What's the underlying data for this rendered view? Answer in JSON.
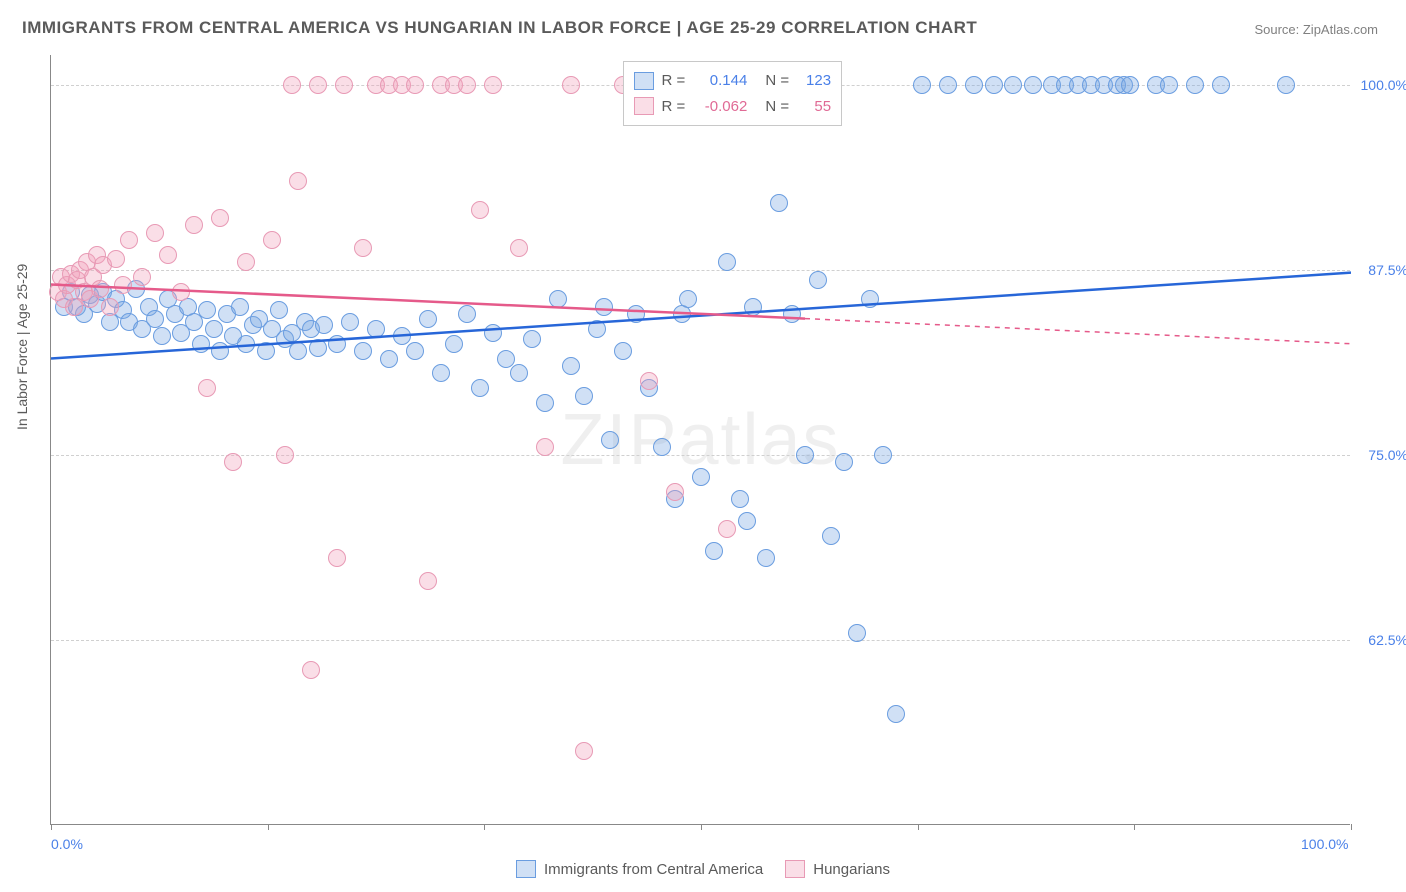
{
  "title": "IMMIGRANTS FROM CENTRAL AMERICA VS HUNGARIAN IN LABOR FORCE | AGE 25-29 CORRELATION CHART",
  "source": "Source: ZipAtlas.com",
  "watermark": "ZIPatlas",
  "ylabel": "In Labor Force | Age 25-29",
  "chart": {
    "type": "scatter",
    "background_color": "#ffffff",
    "grid_color": "#d0d0d0",
    "xlim": [
      0,
      100
    ],
    "ylim": [
      50,
      102
    ],
    "xtick_positions": [
      0,
      16.7,
      33.3,
      50,
      66.7,
      83.3,
      100
    ],
    "xtick_labels": {
      "0": "0.0%",
      "100": "100.0%"
    },
    "yticks": [
      62.5,
      75.0,
      87.5,
      100.0
    ],
    "ytick_labels": [
      "62.5%",
      "75.0%",
      "87.5%",
      "100.0%"
    ],
    "series": [
      {
        "name": "Immigrants from Central America",
        "color_fill": "rgba(120,165,225,0.35)",
        "color_stroke": "#6a9de0",
        "line_color": "#2766d8",
        "marker_radius": 9,
        "R": "0.144",
        "N": "123",
        "trend": {
          "x0": 0,
          "y0": 81.5,
          "x1": 100,
          "y1": 87.3,
          "dash_from_x": 100
        },
        "points": [
          [
            1,
            85
          ],
          [
            1.5,
            86
          ],
          [
            2,
            85
          ],
          [
            2.5,
            84.5
          ],
          [
            3,
            85.8
          ],
          [
            3.5,
            85.2
          ],
          [
            4,
            86
          ],
          [
            4.5,
            84
          ],
          [
            5,
            85.5
          ],
          [
            5.5,
            84.8
          ],
          [
            6,
            84
          ],
          [
            6.5,
            86.2
          ],
          [
            7,
            83.5
          ],
          [
            7.5,
            85
          ],
          [
            8,
            84.2
          ],
          [
            8.5,
            83
          ],
          [
            9,
            85.5
          ],
          [
            9.5,
            84.5
          ],
          [
            10,
            83.2
          ],
          [
            10.5,
            85
          ],
          [
            11,
            84
          ],
          [
            11.5,
            82.5
          ],
          [
            12,
            84.8
          ],
          [
            12.5,
            83.5
          ],
          [
            13,
            82
          ],
          [
            13.5,
            84.5
          ],
          [
            14,
            83
          ],
          [
            14.5,
            85
          ],
          [
            15,
            82.5
          ],
          [
            15.5,
            83.8
          ],
          [
            16,
            84.2
          ],
          [
            16.5,
            82
          ],
          [
            17,
            83.5
          ],
          [
            17.5,
            84.8
          ],
          [
            18,
            82.8
          ],
          [
            18.5,
            83.2
          ],
          [
            19,
            82
          ],
          [
            19.5,
            84
          ],
          [
            20,
            83.5
          ],
          [
            20.5,
            82.2
          ],
          [
            21,
            83.8
          ],
          [
            22,
            82.5
          ],
          [
            23,
            84
          ],
          [
            24,
            82
          ],
          [
            25,
            83.5
          ],
          [
            26,
            81.5
          ],
          [
            27,
            83
          ],
          [
            28,
            82
          ],
          [
            29,
            84.2
          ],
          [
            30,
            80.5
          ],
          [
            31,
            82.5
          ],
          [
            32,
            84.5
          ],
          [
            33,
            79.5
          ],
          [
            34,
            83.2
          ],
          [
            35,
            81.5
          ],
          [
            36,
            80.5
          ],
          [
            37,
            82.8
          ],
          [
            38,
            78.5
          ],
          [
            39,
            85.5
          ],
          [
            40,
            81
          ],
          [
            41,
            79
          ],
          [
            42,
            83.5
          ],
          [
            42.5,
            85
          ],
          [
            43,
            76
          ],
          [
            44,
            82
          ],
          [
            45,
            84.5
          ],
          [
            46,
            79.5
          ],
          [
            47,
            75.5
          ],
          [
            48,
            72
          ],
          [
            48.5,
            84.5
          ],
          [
            49,
            85.5
          ],
          [
            50,
            73.5
          ],
          [
            51,
            68.5
          ],
          [
            52,
            88
          ],
          [
            53,
            72
          ],
          [
            53.5,
            70.5
          ],
          [
            54,
            85
          ],
          [
            55,
            68
          ],
          [
            56,
            92
          ],
          [
            57,
            84.5
          ],
          [
            58,
            75
          ],
          [
            59,
            86.8
          ],
          [
            60,
            69.5
          ],
          [
            61,
            74.5
          ],
          [
            62,
            63
          ],
          [
            63,
            85.5
          ],
          [
            64,
            75
          ],
          [
            65,
            57.5
          ],
          [
            67,
            100
          ],
          [
            69,
            100
          ],
          [
            71,
            100
          ],
          [
            72.5,
            100
          ],
          [
            74,
            100
          ],
          [
            75.5,
            100
          ],
          [
            77,
            100
          ],
          [
            78,
            100
          ],
          [
            79,
            100
          ],
          [
            80,
            100
          ],
          [
            81,
            100
          ],
          [
            82,
            100
          ],
          [
            82.5,
            100
          ],
          [
            83,
            100
          ],
          [
            85,
            100
          ],
          [
            86,
            100
          ],
          [
            88,
            100
          ],
          [
            90,
            100
          ],
          [
            95,
            100
          ]
        ]
      },
      {
        "name": "Hungarians",
        "color_fill": "rgba(240,160,185,0.35)",
        "color_stroke": "#e89ab5",
        "line_color": "#e55a8a",
        "marker_radius": 9,
        "R": "-0.062",
        "N": "55",
        "trend": {
          "x0": 0,
          "y0": 86.5,
          "x1": 58,
          "y1": 84.2,
          "dash_from_x": 58,
          "dash_x1": 100,
          "dash_y1": 82.5
        },
        "points": [
          [
            0.5,
            86
          ],
          [
            0.8,
            87
          ],
          [
            1,
            85.5
          ],
          [
            1.2,
            86.5
          ],
          [
            1.5,
            87.2
          ],
          [
            1.8,
            85
          ],
          [
            2,
            86.8
          ],
          [
            2.2,
            87.5
          ],
          [
            2.5,
            86
          ],
          [
            2.8,
            88
          ],
          [
            3,
            85.5
          ],
          [
            3.2,
            87
          ],
          [
            3.5,
            88.5
          ],
          [
            3.8,
            86.2
          ],
          [
            4,
            87.8
          ],
          [
            4.5,
            85
          ],
          [
            5,
            88.2
          ],
          [
            5.5,
            86.5
          ],
          [
            6,
            89.5
          ],
          [
            7,
            87
          ],
          [
            8,
            90
          ],
          [
            9,
            88.5
          ],
          [
            10,
            86
          ],
          [
            11,
            90.5
          ],
          [
            12,
            79.5
          ],
          [
            13,
            91
          ],
          [
            14,
            74.5
          ],
          [
            15,
            88
          ],
          [
            17,
            89.5
          ],
          [
            18,
            75
          ],
          [
            19,
            93.5
          ],
          [
            20,
            60.5
          ],
          [
            22,
            68
          ],
          [
            24,
            89
          ],
          [
            25,
            100
          ],
          [
            26,
            100
          ],
          [
            27,
            100
          ],
          [
            28,
            100
          ],
          [
            29,
            66.5
          ],
          [
            30,
            100
          ],
          [
            31,
            100
          ],
          [
            33,
            91.5
          ],
          [
            34,
            100
          ],
          [
            36,
            89
          ],
          [
            38,
            75.5
          ],
          [
            40,
            100
          ],
          [
            41,
            55
          ],
          [
            44,
            100
          ],
          [
            46,
            80
          ],
          [
            48,
            72.5
          ],
          [
            52,
            70
          ],
          [
            18.5,
            100
          ],
          [
            20.5,
            100
          ],
          [
            22.5,
            100
          ],
          [
            32,
            100
          ]
        ]
      }
    ]
  },
  "bottom_legend": [
    {
      "swatch": "b",
      "label": "Immigrants from Central America"
    },
    {
      "swatch": "p",
      "label": "Hungarians"
    }
  ]
}
